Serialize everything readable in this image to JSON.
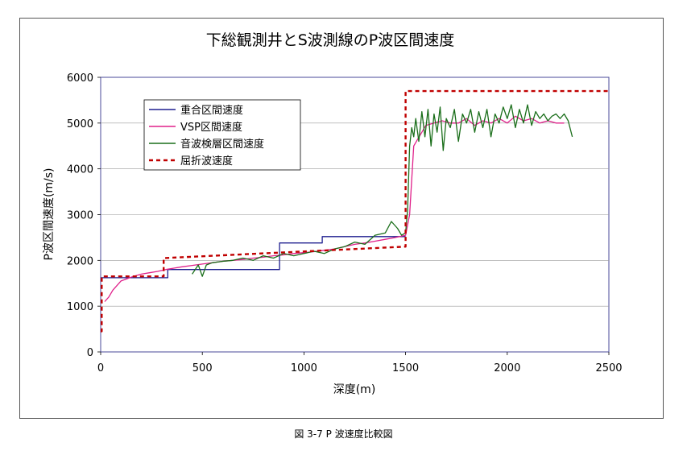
{
  "figure": {
    "caption": "図 3-7 P 波速度比較図"
  },
  "chart_data": {
    "type": "line",
    "title": "下総観測井とS波測線のP波区間速度",
    "xlabel": "深度(m)",
    "ylabel": "P波区間速度(m/s)",
    "xlim": [
      0,
      2500
    ],
    "ylim": [
      0,
      6000
    ],
    "xticks": [
      "0",
      "500",
      "1000",
      "1500",
      "2000",
      "2500"
    ],
    "yticks": [
      "0",
      "1000",
      "2000",
      "3000",
      "4000",
      "5000",
      "6000"
    ],
    "grid": "horizontal",
    "legend_position": "top-left",
    "series": [
      {
        "name": "重合区間速度",
        "color": "#1f1f8f",
        "style": "step",
        "x": [
          0,
          330,
          330,
          880,
          880,
          1090,
          1090,
          1500
        ],
        "y": [
          1620,
          1620,
          1800,
          1800,
          2380,
          2380,
          2520,
          2520
        ]
      },
      {
        "name": "VSP区間速度",
        "color": "#e0208a",
        "style": "line",
        "x": [
          20,
          40,
          60,
          80,
          100,
          130,
          160,
          200,
          240,
          280,
          320,
          360,
          400,
          450,
          500,
          550,
          600,
          650,
          700,
          750,
          800,
          850,
          900,
          950,
          1000,
          1050,
          1100,
          1150,
          1200,
          1250,
          1300,
          1350,
          1400,
          1450,
          1500,
          1520,
          1540,
          1560,
          1580,
          1600,
          1640,
          1680,
          1720,
          1760,
          1800,
          1840,
          1880,
          1920,
          1960,
          2000,
          2040,
          2080,
          2120,
          2160,
          2200,
          2240,
          2280
        ],
        "y": [
          1100,
          1200,
          1350,
          1450,
          1550,
          1600,
          1650,
          1700,
          1730,
          1760,
          1800,
          1830,
          1860,
          1890,
          1920,
          1950,
          1980,
          2000,
          2020,
          2050,
          2070,
          2100,
          2120,
          2150,
          2170,
          2190,
          2220,
          2250,
          2300,
          2350,
          2380,
          2420,
          2460,
          2500,
          2550,
          3000,
          4500,
          4650,
          4800,
          4950,
          5000,
          5050,
          5000,
          5000,
          5100,
          4950,
          5050,
          5000,
          5100,
          5000,
          5150,
          5050,
          5100,
          5000,
          5050,
          5000,
          5000
        ]
      },
      {
        "name": "音波検層区間速度",
        "color": "#1a6e1a",
        "style": "line",
        "x": [
          450,
          480,
          500,
          520,
          550,
          600,
          650,
          700,
          750,
          800,
          850,
          900,
          950,
          1000,
          1050,
          1100,
          1150,
          1200,
          1250,
          1300,
          1350,
          1400,
          1430,
          1460,
          1480,
          1500,
          1510,
          1520,
          1530,
          1540,
          1550,
          1565,
          1580,
          1595,
          1610,
          1625,
          1640,
          1655,
          1670,
          1685,
          1700,
          1720,
          1740,
          1760,
          1780,
          1800,
          1820,
          1840,
          1860,
          1880,
          1900,
          1920,
          1940,
          1960,
          1980,
          2000,
          2020,
          2040,
          2060,
          2080,
          2100,
          2120,
          2140,
          2160,
          2180,
          2200,
          2220,
          2240,
          2260,
          2280,
          2300,
          2320
        ],
        "y": [
          1700,
          1900,
          1650,
          1900,
          1950,
          1980,
          2000,
          2050,
          2000,
          2100,
          2050,
          2150,
          2100,
          2150,
          2200,
          2150,
          2250,
          2300,
          2400,
          2350,
          2550,
          2600,
          2850,
          2700,
          2550,
          2600,
          3100,
          4500,
          4900,
          4700,
          5100,
          4600,
          5250,
          4700,
          5300,
          4500,
          5200,
          4800,
          5350,
          4400,
          5100,
          4900,
          5300,
          4600,
          5200,
          5000,
          5300,
          4800,
          5250,
          4900,
          5300,
          4700,
          5200,
          5000,
          5350,
          5100,
          5400,
          4900,
          5300,
          5000,
          5400,
          4950,
          5250,
          5100,
          5200,
          5050,
          5150,
          5200,
          5100,
          5200,
          5050,
          4700
        ]
      },
      {
        "name": "屈折波速度",
        "color": "#c00000",
        "style": "dashed-step",
        "x": [
          0,
          5,
          5,
          15,
          15,
          310,
          310,
          1495,
          1495,
          1500,
          1500,
          2500
        ],
        "y": [
          450,
          450,
          1650,
          1650,
          1650,
          1650,
          2050,
          2300,
          2300,
          2300,
          5700,
          5700
        ]
      }
    ]
  }
}
